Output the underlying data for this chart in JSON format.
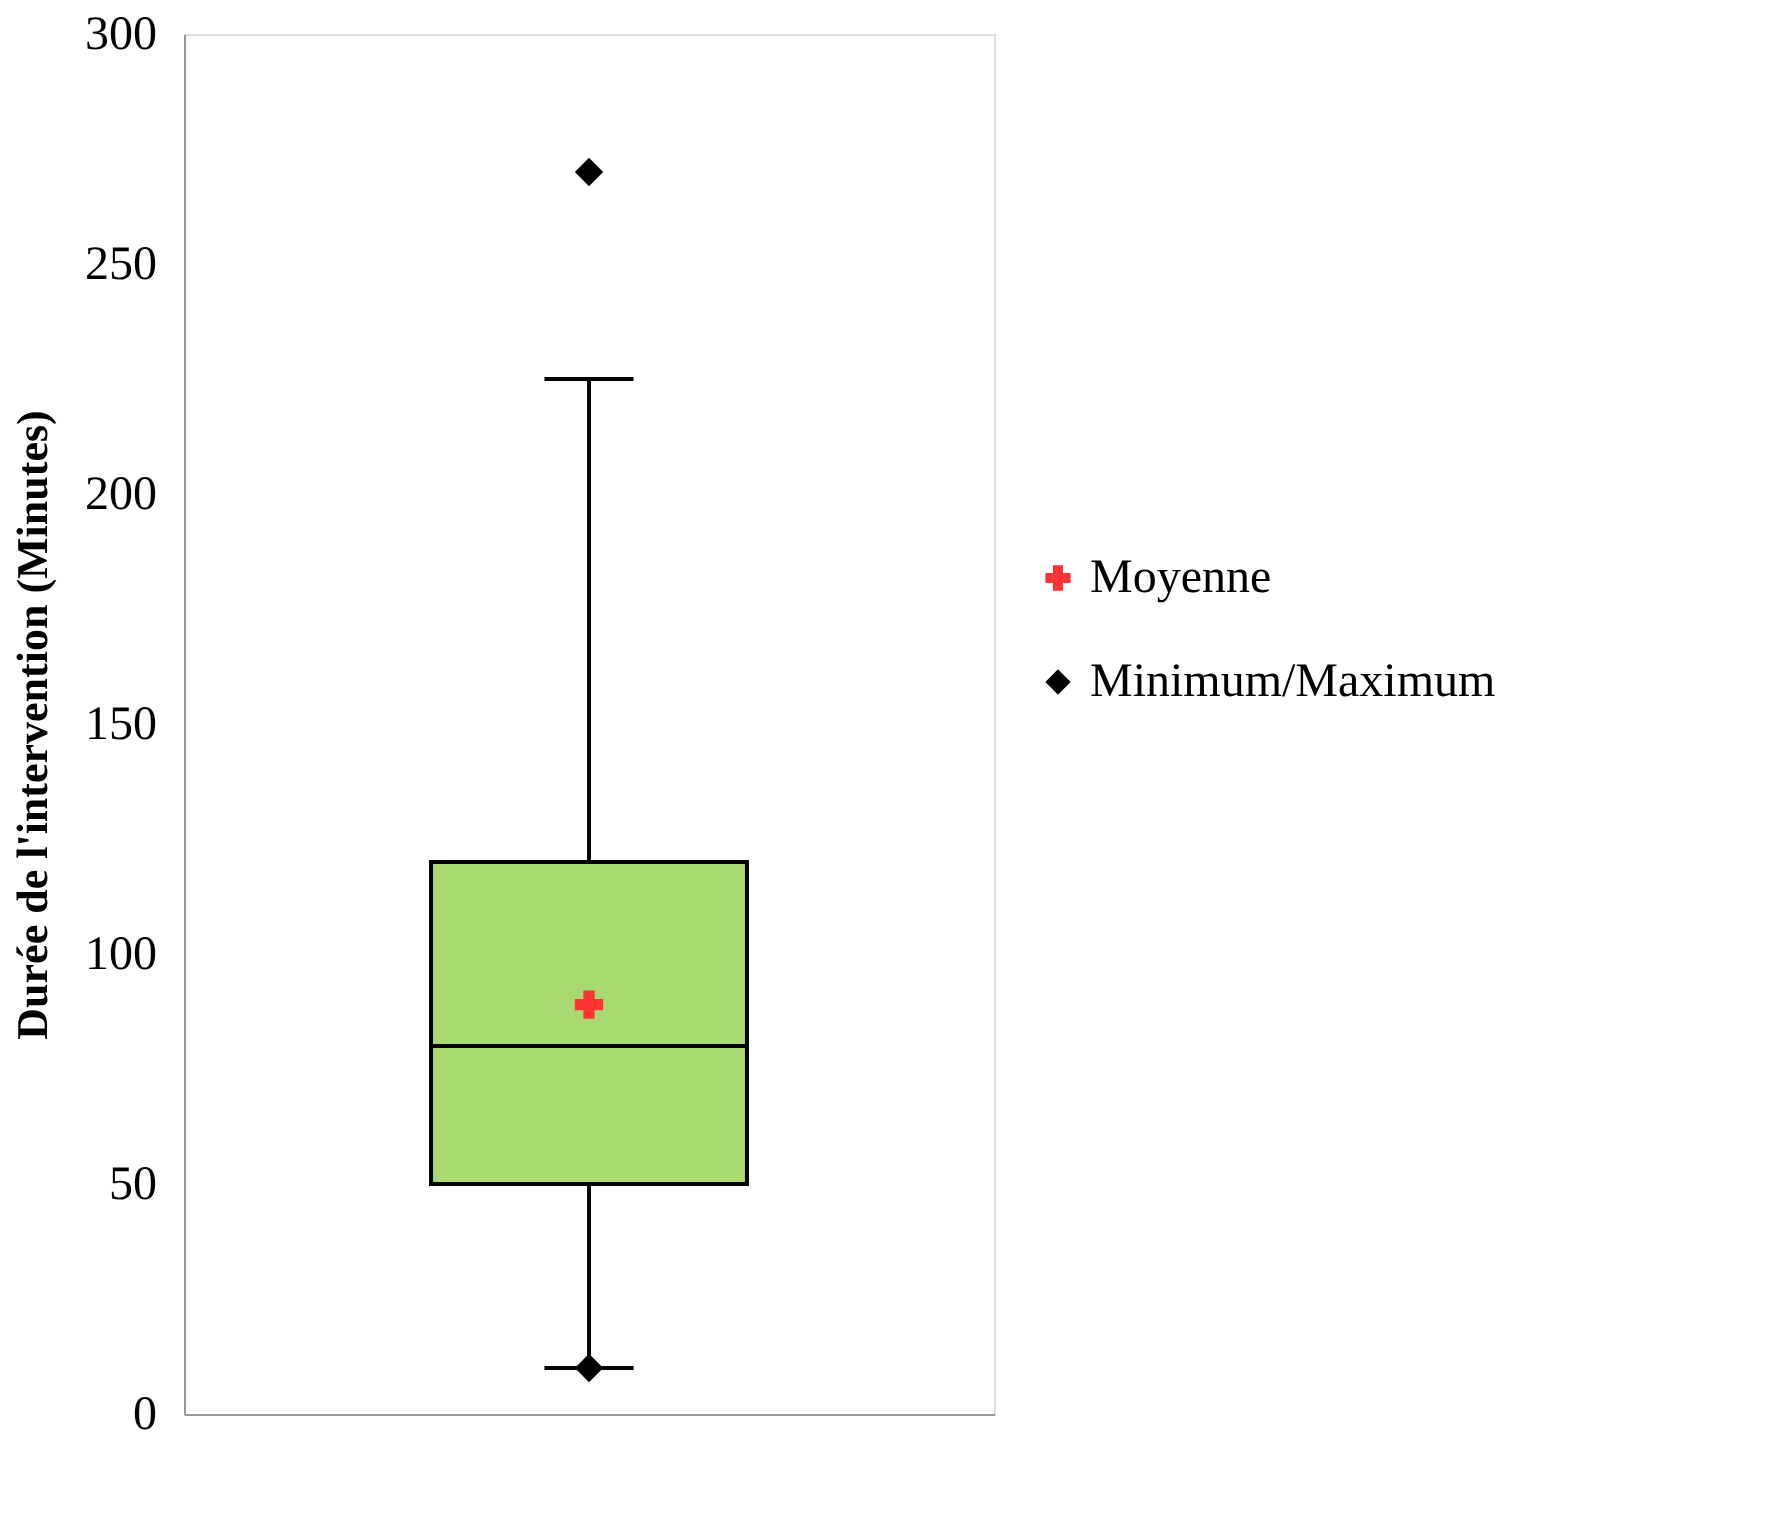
{
  "chart_data": {
    "type": "box",
    "ylabel": "Durée de l'intervention (Minutes)",
    "categories": [
      null
    ],
    "ylim": [
      0,
      300
    ],
    "yticks": [
      0,
      50,
      100,
      150,
      200,
      250,
      300
    ],
    "grid": false,
    "legend": "right",
    "series": [
      {
        "type": "box",
        "color": "#a9d971",
        "boxes": [
          {
            "low": 10,
            "q1": 50,
            "median": 80,
            "q3": 120,
            "high": 225
          }
        ]
      },
      {
        "type": "scatter",
        "name": "Moyenne",
        "color": "#ff3333",
        "marker": "cross",
        "x": [
          null
        ],
        "values": [
          89
        ]
      },
      {
        "type": "scatter",
        "name": "Minimum/Maximum",
        "color": "#000000",
        "marker": "diamond",
        "x": [
          null,
          null
        ],
        "values": [
          10,
          270
        ]
      }
    ]
  }
}
